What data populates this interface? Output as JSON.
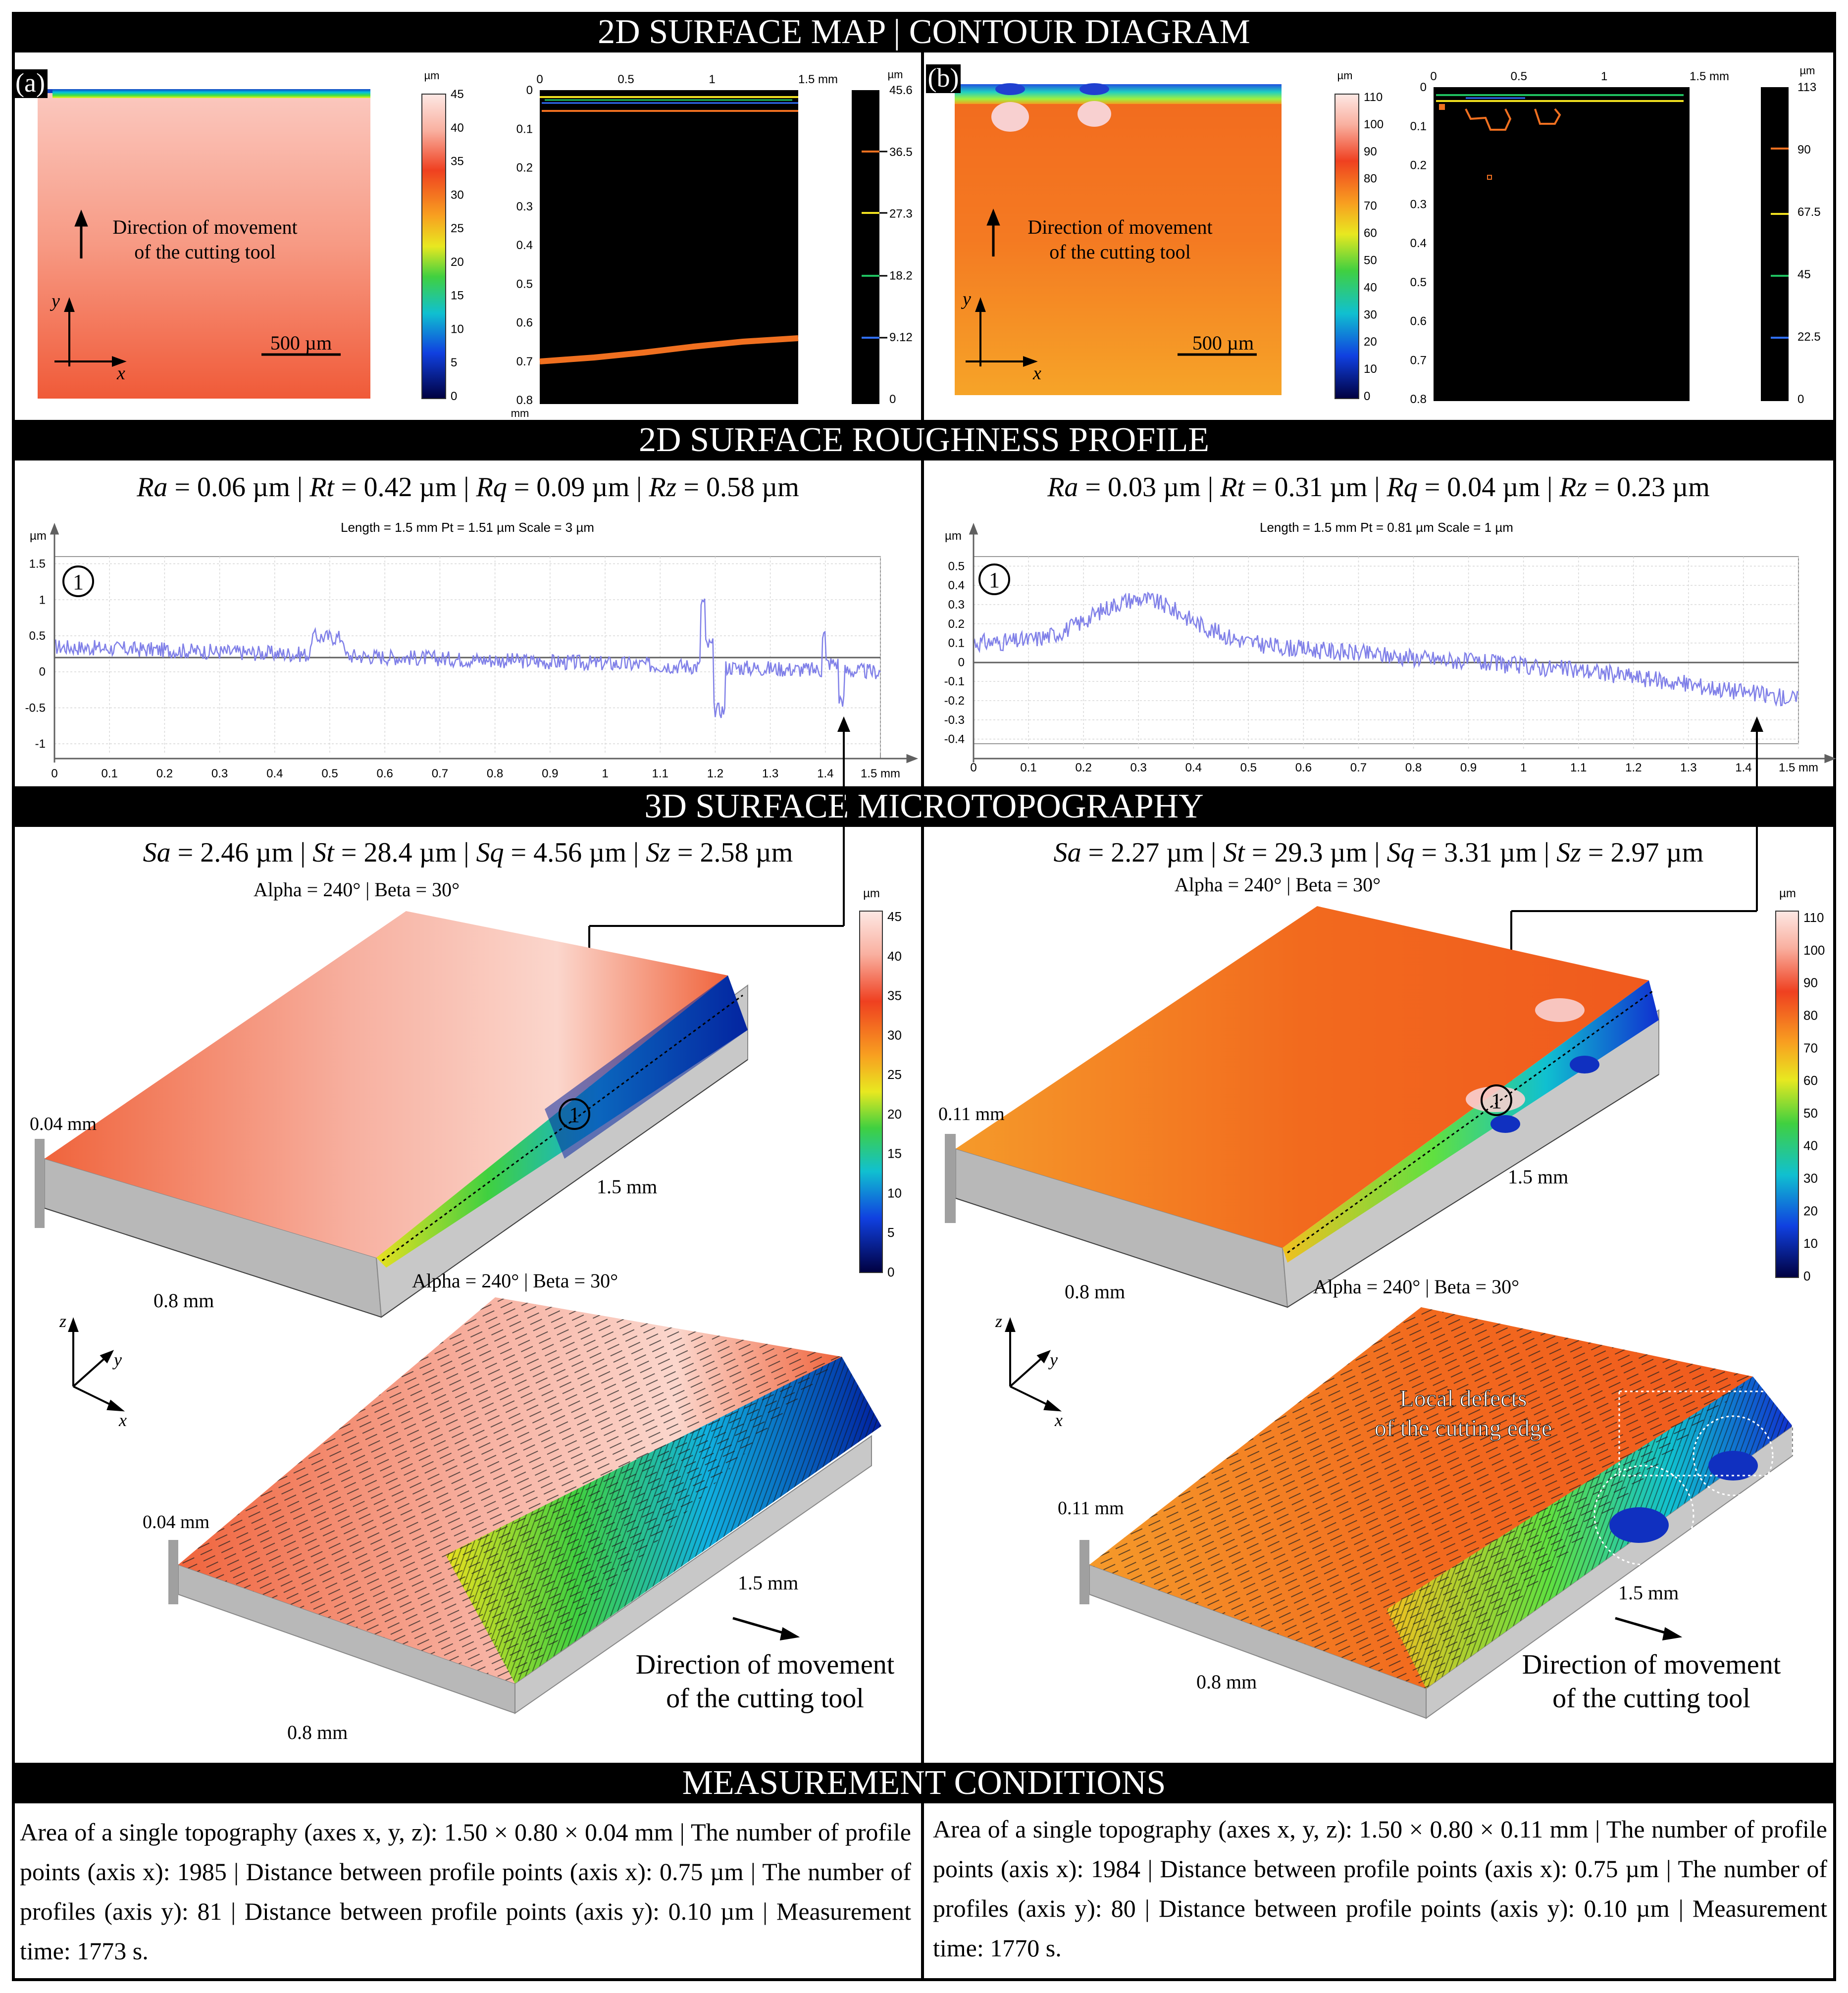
{
  "sections": {
    "map": "2D SURFACE MAP | CONTOUR DIAGRAM",
    "profile": "2D SURFACE ROUGHNESS PROFILE",
    "topo": "3D SURFACE MICROTOPOGRAPHY",
    "conditions": "MEASUREMENT CONDITIONS"
  },
  "panel_a": {
    "label": "(a)",
    "direction_line1": "Direction of movement",
    "direction_line2": "of the cutting tool",
    "scale_bar": "500 µm",
    "axis_x": "x",
    "axis_y": "y",
    "colorbar_unit": "µm",
    "colorbar_ticks": [
      "45",
      "40",
      "35",
      "30",
      "25",
      "20",
      "15",
      "10",
      "5",
      "0"
    ],
    "contour_x_ticks": [
      "0",
      "0.5",
      "1",
      "1.5 mm"
    ],
    "contour_y_ticks": [
      "0",
      "0.1",
      "0.2",
      "0.3",
      "0.4",
      "0.5",
      "0.6",
      "0.7",
      "0.8"
    ],
    "contour_y_unit": "mm",
    "contour_legend_unit": "µm",
    "contour_legend": [
      "45.6",
      "36.5",
      "27.3",
      "18.2",
      "9.12",
      "0"
    ],
    "roughness": {
      "Ra": "0.06 µm",
      "Rt": "0.42 µm",
      "Rq": "0.09 µm",
      "Rz": "0.58 µm"
    },
    "profile_info": "Length = 1.5 mm  Pt = 1.51 µm  Scale = 3 µm",
    "profile_unit": "µm",
    "profile_y_ticks": [
      "1.5",
      "1",
      "0.5",
      "0",
      "-0.5",
      "-1"
    ],
    "profile_x_ticks": [
      "0",
      "0.1",
      "0.2",
      "0.3",
      "0.4",
      "0.5",
      "0.6",
      "0.7",
      "0.8",
      "0.9",
      "1",
      "1.1",
      "1.2",
      "1.3",
      "1.4",
      "1.5 mm"
    ],
    "marker": "1",
    "areal": {
      "Sa": "2.46 µm",
      "St": "28.4 µm",
      "Sq": "4.56 µm",
      "Sz": "2.58 µm"
    },
    "view_angles": "Alpha = 240° | Beta = 30°",
    "view_angles_2": "Alpha = 240° | Beta = 30°",
    "z_label": "0.04 mm",
    "z_label_2": "0.04 mm",
    "len_label": "1.5 mm",
    "len_label_2": "1.5 mm",
    "width_label": "0.8 mm",
    "width_label_2": "0.8 mm",
    "colorbar3d_ticks": [
      "45",
      "40",
      "35",
      "30",
      "25",
      "20",
      "15",
      "10",
      "5",
      "0"
    ],
    "axis_z": "z",
    "direction2_line1": "Direction of movement",
    "direction2_line2": "of the cutting tool",
    "conditions": "Area of a single topography (axes x, y, z): 1.50 × 0.80 × 0.04 mm | The number of profile points (axis x): 1985 | Distance between profile points (axis x): 0.75 µm | The number of profiles (axis y): 81 | Distance between profile points (axis y): 0.10 µm | Measurement time: 1773 s."
  },
  "panel_b": {
    "label": "(b)",
    "direction_line1": "Direction of movement",
    "direction_line2": "of the cutting tool",
    "scale_bar": "500 µm",
    "axis_x": "x",
    "axis_y": "y",
    "colorbar_unit": "µm",
    "colorbar_ticks": [
      "110",
      "100",
      "90",
      "80",
      "70",
      "60",
      "50",
      "40",
      "30",
      "20",
      "10",
      "0"
    ],
    "contour_x_ticks": [
      "0",
      "0.5",
      "1",
      "1.5 mm"
    ],
    "contour_y_ticks": [
      "0",
      "0.1",
      "0.2",
      "0.3",
      "0.4",
      "0.5",
      "0.6",
      "0.7",
      "0.8"
    ],
    "contour_legend_unit": "µm",
    "contour_legend": [
      "113",
      "90",
      "67.5",
      "45",
      "22.5",
      "0"
    ],
    "roughness": {
      "Ra": "0.03 µm",
      "Rt": "0.31 µm",
      "Rq": "0.04 µm",
      "Rz": "0.23 µm"
    },
    "profile_info": "Length = 1.5 mm  Pt = 0.81 µm  Scale = 1 µm",
    "profile_unit": "µm",
    "profile_y_ticks": [
      "0.5",
      "0.4",
      "0.3",
      "0.2",
      "0.1",
      "0",
      "-0.1",
      "-0.2",
      "-0.3",
      "-0.4"
    ],
    "profile_x_ticks": [
      "0",
      "0.1",
      "0.2",
      "0.3",
      "0.4",
      "0.5",
      "0.6",
      "0.7",
      "0.8",
      "0.9",
      "1",
      "1.1",
      "1.2",
      "1.3",
      "1.4",
      "1.5 mm"
    ],
    "marker": "1",
    "areal": {
      "Sa": "2.27 µm",
      "St": "29.3 µm",
      "Sq": "3.31 µm",
      "Sz": "2.97 µm"
    },
    "view_angles": "Alpha = 240° | Beta = 30°",
    "view_angles_2": "Alpha = 240° | Beta = 30°",
    "z_label": "0.11 mm",
    "z_label_2": "0.11 mm",
    "len_label": "1.5 mm",
    "len_label_2": "1.5 mm",
    "width_label": "0.8 mm",
    "width_label_2": "0.8 mm",
    "colorbar3d_unit": "µm",
    "colorbar3d_ticks": [
      "110",
      "100",
      "90",
      "80",
      "70",
      "60",
      "50",
      "40",
      "30",
      "20",
      "10",
      "0"
    ],
    "axis_z": "z",
    "defects_line1": "Local defects",
    "defects_line2": "of the cutting edge",
    "direction2_line1": "Direction of movement",
    "direction2_line2": "of the cutting tool",
    "conditions": "Area of a single topography (axes x, y, z): 1.50 × 0.80 × 0.11 mm | The number of profile points (axis x): 1984 | Distance between profile points (axis x): 0.75 µm | The number of profiles (axis y): 80 | Distance between profile points (axis y): 0.10 µm | Measurement time: 1770 s."
  },
  "colors": {
    "profile_line": "#8080e8",
    "contour_bg": "#000000",
    "band_bg": "#000000",
    "band_text": "#ffffff"
  }
}
